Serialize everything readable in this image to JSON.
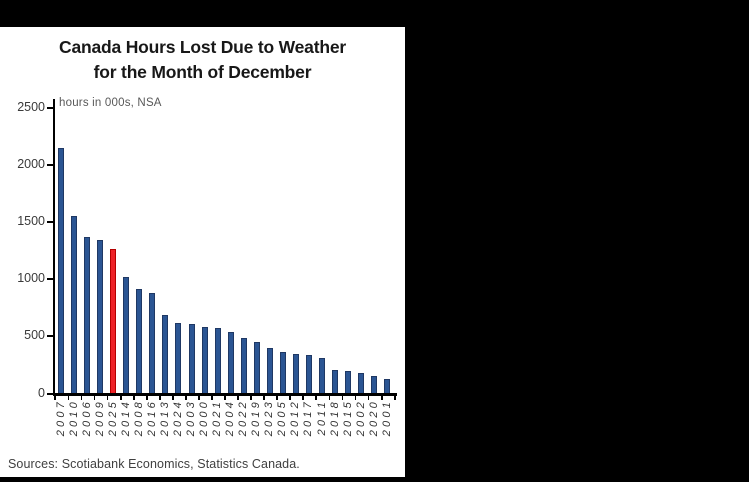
{
  "frame": {
    "backdrop_color": "#000000",
    "card_color": "#ffffff"
  },
  "chart": {
    "title_line1": "Canada Hours Lost Due to Weather",
    "title_line2": "for the Month of December",
    "subtitle": "hours in 000s, NSA",
    "source": "Sources: Scotiabank Economics, Statistics Canada."
  },
  "chart_data": {
    "type": "bar",
    "title": "Canada Hours Lost Due to Weather for the Month of December",
    "subtitle": "hours in 000s, NSA",
    "xlabel": "",
    "ylabel": "hours in 000s, NSA",
    "ylim": [
      0,
      2500
    ],
    "y_ticks": [
      0,
      500,
      1000,
      1500,
      2000,
      2500
    ],
    "grid": false,
    "legend": false,
    "sorted": "descending by value",
    "categories": [
      "2007",
      "2010",
      "2006",
      "2009",
      "2025",
      "2014",
      "2008",
      "2016",
      "2013",
      "2024",
      "2003",
      "2000",
      "2021",
      "2004",
      "2022",
      "2019",
      "2023",
      "2005",
      "2012",
      "2017",
      "2011",
      "2018",
      "2015",
      "2002",
      "2020",
      "2001"
    ],
    "values": [
      2140,
      1545,
      1360,
      1340,
      1260,
      1010,
      910,
      875,
      685,
      615,
      600,
      580,
      565,
      535,
      485,
      445,
      390,
      360,
      345,
      330,
      305,
      200,
      195,
      175,
      150,
      120
    ],
    "highlight_category": "2025",
    "bar_color": "#2B5593",
    "bar_border_color": "#1F3864",
    "highlight_color": "#EE2227",
    "highlight_border_color": "#B40000",
    "axis_color": "#000000"
  }
}
